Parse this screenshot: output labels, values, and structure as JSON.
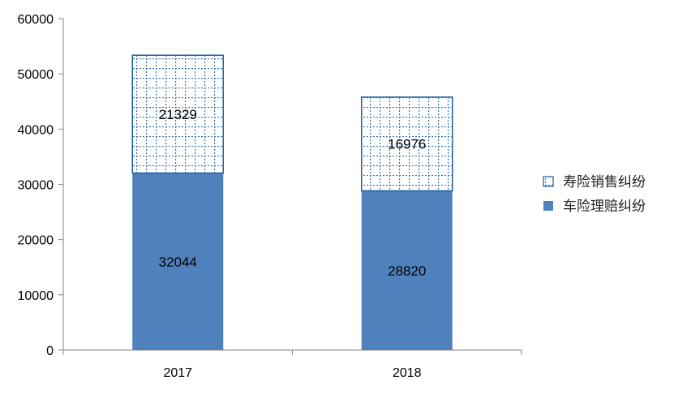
{
  "chart_data": {
    "type": "bar",
    "stacked": true,
    "categories": [
      "2017",
      "2018"
    ],
    "series": [
      {
        "name": "车险理赔纠纷",
        "values": [
          32044,
          28820
        ],
        "color": "#4f81bd",
        "pattern": "solid"
      },
      {
        "name": "寿险销售纠纷",
        "values": [
          21329,
          16976
        ],
        "color": "#1f5f9f",
        "pattern": "dotted-grid"
      }
    ],
    "ylim": [
      0,
      60000
    ],
    "yticks": [
      0,
      10000,
      20000,
      30000,
      40000,
      50000,
      60000
    ],
    "grid": false,
    "legend_position": "right",
    "legend_order": [
      1,
      0
    ]
  }
}
